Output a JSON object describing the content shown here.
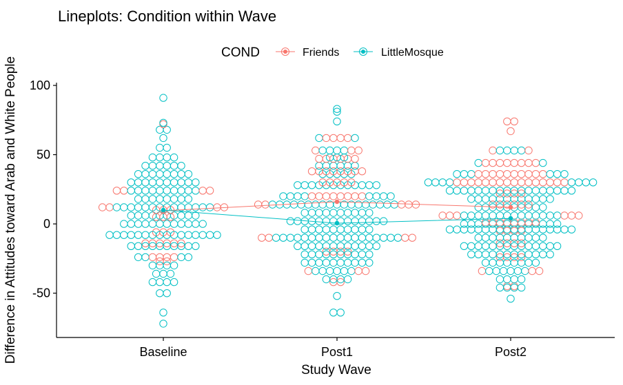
{
  "chart_data": {
    "type": "scatter",
    "title": "Lineplots: Condition within Wave",
    "xlabel": "Study Wave",
    "ylabel": "Difference in Attitudes toward Arab and White People",
    "categories": [
      "Baseline",
      "Post1",
      "Post2"
    ],
    "ylim": [
      -82,
      102
    ],
    "yticks": [
      -50,
      0,
      50,
      100
    ],
    "yticklabels": [
      "-50",
      "0",
      "50",
      "100"
    ],
    "grid": false,
    "legend": {
      "title": "COND",
      "placement": "top"
    },
    "series": [
      {
        "name": "Friends",
        "color": "#F8766D",
        "means": [
          9.5,
          16,
          12
        ],
        "points": {
          "Baseline": [
            [
              72,
              1
            ],
            [
              24,
              4
            ],
            [
              12,
              4
            ],
            [
              10,
              3
            ],
            [
              5,
              3
            ],
            [
              -6,
              3
            ],
            [
              -14,
              6
            ],
            [
              -24,
              4
            ],
            [
              -27,
              2
            ]
          ],
          "Post1": [
            [
              62,
              4
            ],
            [
              53,
              3
            ],
            [
              47,
              6
            ],
            [
              38,
              8
            ],
            [
              30,
              5
            ],
            [
              20,
              8
            ],
            [
              14,
              5
            ],
            [
              -10,
              4
            ],
            [
              -20,
              4
            ],
            [
              -34,
              3
            ],
            [
              -42,
              2
            ]
          ],
          "Post2": [
            [
              74,
              2
            ],
            [
              67,
              1
            ],
            [
              53,
              2
            ],
            [
              44,
              8
            ],
            [
              36,
              10
            ],
            [
              30,
              16
            ],
            [
              22,
              4
            ],
            [
              14,
              6
            ],
            [
              6,
              6
            ],
            [
              1,
              8
            ],
            [
              -5,
              4
            ],
            [
              -14,
              4
            ],
            [
              -24,
              4
            ],
            [
              -34,
              3
            ],
            [
              -45,
              2
            ]
          ]
        }
      },
      {
        "name": "LittleMosque",
        "color": "#00BFC4",
        "means": [
          10,
          0.5,
          4
        ],
        "points": {
          "Baseline": [
            [
              91,
              1
            ],
            [
              73,
              1
            ],
            [
              68,
              2
            ],
            [
              62,
              1
            ],
            [
              55,
              2
            ],
            [
              48,
              4
            ],
            [
              42,
              6
            ],
            [
              36,
              8
            ],
            [
              30,
              10
            ],
            [
              24,
              10
            ],
            [
              18,
              8
            ],
            [
              12,
              14
            ],
            [
              6,
              10
            ],
            [
              0,
              12
            ],
            [
              -8,
              16
            ],
            [
              -16,
              10
            ],
            [
              -24,
              4
            ],
            [
              -30,
              4
            ],
            [
              -36,
              3
            ],
            [
              -42,
              4
            ],
            [
              -50,
              2
            ],
            [
              -64,
              1
            ],
            [
              -72,
              1
            ]
          ],
          "Post1": [
            [
              83,
              1
            ],
            [
              81,
              1
            ],
            [
              74,
              1
            ],
            [
              62,
              2
            ],
            [
              53,
              4
            ],
            [
              48,
              3
            ],
            [
              42,
              6
            ],
            [
              36,
              5
            ],
            [
              28,
              12
            ],
            [
              20,
              8
            ],
            [
              14,
              18
            ],
            [
              8,
              10
            ],
            [
              2,
              14
            ],
            [
              -4,
              10
            ],
            [
              -10,
              18
            ],
            [
              -16,
              12
            ],
            [
              -22,
              10
            ],
            [
              -28,
              10
            ],
            [
              -34,
              6
            ],
            [
              -40,
              4
            ],
            [
              -52,
              1
            ],
            [
              -64,
              2
            ]
          ],
          "Post2": [
            [
              53,
              4
            ],
            [
              44,
              2
            ],
            [
              36,
              6
            ],
            [
              30,
              8
            ],
            [
              24,
              18
            ],
            [
              18,
              12
            ],
            [
              12,
              10
            ],
            [
              6,
              14
            ],
            [
              0,
              14
            ],
            [
              -4,
              18
            ],
            [
              -10,
              10
            ],
            [
              -16,
              14
            ],
            [
              -22,
              12
            ],
            [
              -28,
              8
            ],
            [
              -34,
              6
            ],
            [
              -40,
              4
            ],
            [
              -46,
              4
            ],
            [
              -54,
              1
            ]
          ]
        }
      }
    ]
  }
}
